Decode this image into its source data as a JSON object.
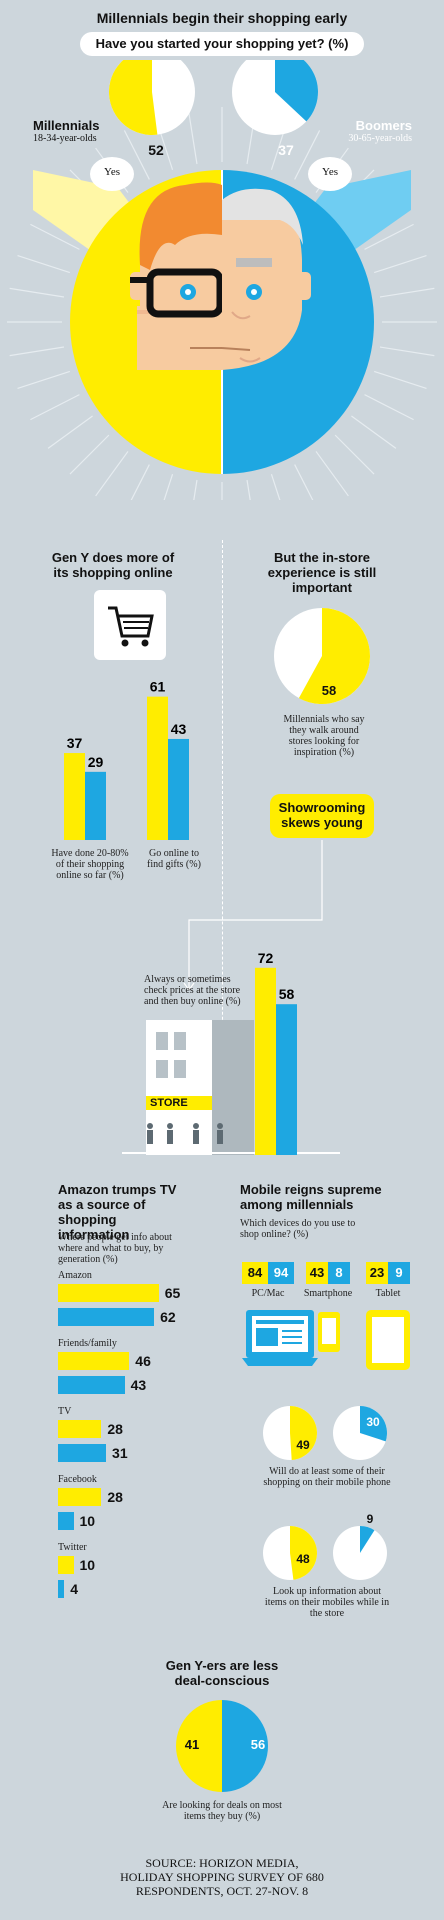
{
  "header": {
    "title": "Millennials begin their shopping early",
    "question": "Have you started your shopping yet? (%)"
  },
  "millennials": {
    "label": "Millennials",
    "sub": "18-34-year-olds",
    "yes": "Yes",
    "value": 52,
    "color": "#ffed00"
  },
  "boomers": {
    "label": "Boomers",
    "sub": "30-65-year-olds",
    "yes": "Yes",
    "value": 37,
    "color": "#1ea7e1"
  },
  "online": {
    "title": "Gen Y does more of its shopping online",
    "groups": [
      {
        "label": "Have done 20-80% of their shopping online so far (%)",
        "gen_y": 37,
        "boomers": 29
      },
      {
        "label": "Go online to find gifts (%)",
        "gen_y": 61,
        "boomers": 43
      }
    ]
  },
  "instore": {
    "title": "But the in-store experience is still important",
    "value": 58,
    "label": "Millennials who say they walk around stores looking for inspiration (%)"
  },
  "showroom": {
    "badge": "Showrooming skews young",
    "label": "Always or sometimes check prices at the store and then buy online (%)",
    "gen_y": 72,
    "boomers": 58,
    "store_sign": "STORE"
  },
  "amazon": {
    "title": "Amazon trumps TV as a source of shopping information",
    "subtitle": "Where people get info about where and what to buy, by generation (%)",
    "rows": [
      {
        "label": "Amazon",
        "gen_y": 65,
        "boomers": 62
      },
      {
        "label": "Friends/family",
        "gen_y": 46,
        "boomers": 43
      },
      {
        "label": "TV",
        "gen_y": 28,
        "boomers": 31
      },
      {
        "label": "Facebook",
        "gen_y": 28,
        "boomers": 10
      },
      {
        "label": "Twitter",
        "gen_y": 10,
        "boomers": 4
      }
    ]
  },
  "mobile": {
    "title": "Mobile reigns supreme among millennials",
    "subtitle": "Which devices do you use to shop online? (%)",
    "devices": [
      {
        "label": "PC/Mac",
        "gen_y": 84,
        "boomers": 94
      },
      {
        "label": "Smartphone",
        "gen_y": 43,
        "boomers": 8
      },
      {
        "label": "Tablet",
        "gen_y": 23,
        "boomers": 9
      }
    ],
    "phone_shopping": {
      "gen_y": 49,
      "boomers": 30,
      "label": "Will do at least some of their shopping on their mobile phone"
    },
    "phone_lookup": {
      "gen_y": 48,
      "boomers": 9,
      "label": "Look up information about items on their mobiles while in the store"
    }
  },
  "deals": {
    "title": "Gen Y-ers are less deal-conscious",
    "gen_y": 41,
    "boomers": 56,
    "label": "Are looking for deals on most items they buy (%)"
  },
  "source": "SOURCE: HORIZON MEDIA, HOLIDAY SHOPPING SURVEY OF 680 RESPONDENTS, OCT. 27-NOV. 8",
  "chart_data": [
    {
      "type": "pie",
      "title": "Have you started your shopping yet? (%)",
      "series": [
        {
          "name": "Millennials",
          "values": [
            52
          ]
        },
        {
          "name": "Boomers",
          "values": [
            37
          ]
        }
      ]
    },
    {
      "type": "bar",
      "title": "Gen Y does more of its shopping online",
      "categories": [
        "Have done 20-80% of their shopping online so far (%)",
        "Go online to find gifts (%)"
      ],
      "series": [
        {
          "values": [
            37,
            61
          ]
        },
        {
          "values": [
            29,
            43
          ]
        }
      ]
    },
    {
      "type": "pie",
      "title": "But the in-store experience is still important",
      "values": [
        58
      ]
    },
    {
      "type": "bar",
      "title": "Showrooming skews young",
      "categories": [
        "Always or sometimes check prices at the store and then buy online (%)"
      ],
      "series": [
        {
          "values": [
            72
          ]
        },
        {
          "values": [
            58
          ]
        }
      ]
    },
    {
      "type": "bar",
      "title": "Amazon trumps TV as a source of shopping information",
      "categories": [
        "Amazon",
        "Friends/family",
        "TV",
        "Facebook",
        "Twitter"
      ],
      "series": [
        {
          "values": [
            65,
            46,
            28,
            28,
            10
          ]
        },
        {
          "values": [
            62,
            43,
            31,
            10,
            4
          ]
        }
      ]
    },
    {
      "type": "table",
      "title": "Which devices do you use to shop online? (%)",
      "categories": [
        "PC/Mac",
        "Smartphone",
        "Tablet"
      ],
      "series": [
        {
          "values": [
            84,
            43,
            23
          ]
        },
        {
          "values": [
            94,
            8,
            9
          ]
        }
      ]
    },
    {
      "type": "pie",
      "title": "Will do at least some of their shopping on their mobile phone",
      "series": [
        {
          "values": [
            49
          ]
        },
        {
          "values": [
            30
          ]
        }
      ]
    },
    {
      "type": "pie",
      "title": "Look up information about items on their mobiles while in the store",
      "series": [
        {
          "values": [
            48
          ]
        },
        {
          "values": [
            9
          ]
        }
      ]
    },
    {
      "type": "pie",
      "title": "Gen Y-ers are less deal-conscious",
      "series": [
        {
          "values": [
            41
          ]
        },
        {
          "values": [
            56
          ]
        }
      ]
    }
  ]
}
